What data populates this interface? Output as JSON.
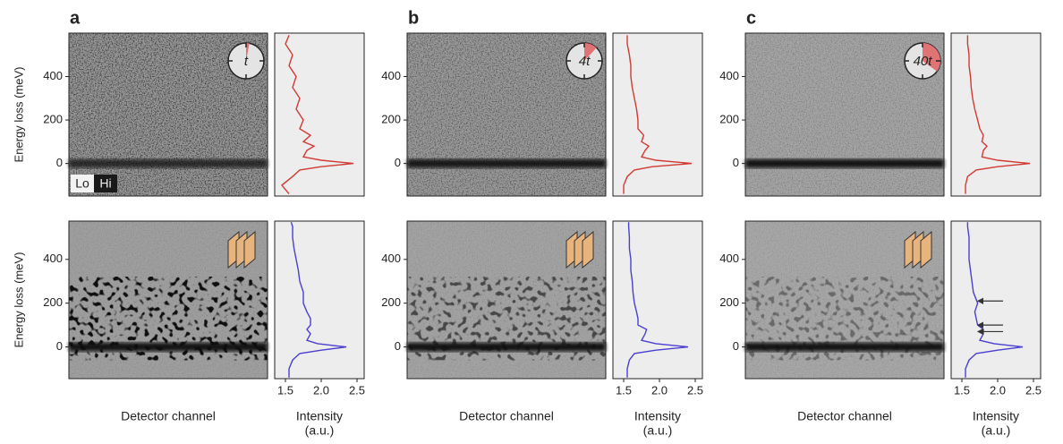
{
  "panel_labels": [
    "a",
    "b",
    "c"
  ],
  "clock_labels": [
    "t",
    "4t",
    "40t"
  ],
  "colorbar_labels": [
    "Lo",
    "Hi"
  ],
  "image_xlabel": "Detector channel",
  "chart_data": [
    {
      "type": "line",
      "color": "#d13a32",
      "ylabel": "Energy loss (meV)",
      "ylim": [
        -150,
        600
      ],
      "yticks": [
        0,
        200,
        400
      ],
      "xlim": [
        1.35,
        2.6
      ],
      "energy": [
        -140,
        -100,
        -60,
        -30,
        -15,
        0,
        15,
        30,
        60,
        80,
        100,
        130,
        160,
        200,
        250,
        300,
        350,
        400,
        450,
        500,
        550,
        590
      ],
      "values": [
        1.55,
        1.45,
        1.6,
        1.7,
        2.0,
        2.45,
        2.0,
        1.75,
        1.8,
        1.9,
        1.75,
        1.85,
        1.7,
        1.75,
        1.65,
        1.7,
        1.6,
        1.65,
        1.55,
        1.6,
        1.5,
        1.55
      ]
    },
    {
      "type": "line",
      "color": "#4a3fd0",
      "ylabel": "Energy loss (meV)",
      "xlabel": [
        "Intensity",
        "(a.u.)"
      ],
      "ylim": [
        -145,
        575
      ],
      "yticks": [
        0,
        200,
        400
      ],
      "xlim": [
        1.35,
        2.6
      ],
      "xticks": [
        1.5,
        {
          "value": 2.0,
          "label": "2.0"
        },
        2.5
      ],
      "energy": [
        -140,
        -100,
        -60,
        -30,
        -15,
        0,
        15,
        30,
        60,
        80,
        100,
        130,
        160,
        200,
        250,
        300,
        350,
        400,
        450,
        500,
        550,
        570
      ],
      "values": [
        1.55,
        1.55,
        1.6,
        1.7,
        2.0,
        2.35,
        1.95,
        1.8,
        1.85,
        1.8,
        1.85,
        1.85,
        1.8,
        1.75,
        1.75,
        1.7,
        1.68,
        1.65,
        1.62,
        1.6,
        1.6,
        1.58
      ]
    },
    {
      "type": "line",
      "color": "#d13a32",
      "ylim": [
        -150,
        600
      ],
      "yticks": [
        0,
        200,
        400
      ],
      "xlim": [
        1.35,
        2.6
      ],
      "energy": [
        -140,
        -100,
        -60,
        -30,
        -15,
        0,
        15,
        30,
        60,
        80,
        100,
        130,
        160,
        200,
        250,
        300,
        350,
        400,
        450,
        500,
        550,
        590
      ],
      "values": [
        1.5,
        1.5,
        1.55,
        1.65,
        1.9,
        2.45,
        1.95,
        1.75,
        1.8,
        1.85,
        1.75,
        1.78,
        1.7,
        1.7,
        1.68,
        1.65,
        1.62,
        1.6,
        1.6,
        1.58,
        1.55,
        1.55
      ]
    },
    {
      "type": "line",
      "color": "#4a3fd0",
      "xlabel": [
        "Intensity",
        "(a.u.)"
      ],
      "ylim": [
        -145,
        575
      ],
      "yticks": [
        0,
        200,
        400
      ],
      "xlim": [
        1.35,
        2.6
      ],
      "xticks": [
        1.5,
        {
          "value": 2.0,
          "label": "2.0"
        },
        2.5
      ],
      "energy": [
        -140,
        -100,
        -60,
        -30,
        -15,
        0,
        15,
        30,
        60,
        80,
        100,
        130,
        160,
        200,
        250,
        300,
        350,
        400,
        450,
        500,
        550,
        570
      ],
      "values": [
        1.55,
        1.55,
        1.58,
        1.65,
        1.95,
        2.4,
        1.95,
        1.75,
        1.8,
        1.82,
        1.7,
        1.7,
        1.68,
        1.65,
        1.63,
        1.62,
        1.6,
        1.6,
        1.58,
        1.58,
        1.57,
        1.57
      ]
    },
    {
      "type": "line",
      "color": "#d13a32",
      "ylim": [
        -150,
        600
      ],
      "yticks": [
        0,
        200,
        400
      ],
      "xlim": [
        1.35,
        2.6
      ],
      "energy": [
        -140,
        -100,
        -60,
        -30,
        -15,
        0,
        15,
        30,
        60,
        80,
        100,
        130,
        160,
        200,
        250,
        300,
        350,
        400,
        450,
        500,
        550,
        590
      ],
      "values": [
        1.55,
        1.55,
        1.58,
        1.7,
        2.0,
        2.45,
        2.0,
        1.78,
        1.8,
        1.85,
        1.78,
        1.8,
        1.75,
        1.72,
        1.68,
        1.65,
        1.63,
        1.62,
        1.6,
        1.6,
        1.58,
        1.58
      ]
    },
    {
      "type": "line",
      "color": "#4a3fd0",
      "xlabel": [
        "Intensity",
        "(a.u.)"
      ],
      "ylim": [
        -145,
        575
      ],
      "yticks": [
        0,
        200,
        400
      ],
      "xlim": [
        1.35,
        2.6
      ],
      "xticks": [
        1.5,
        {
          "value": 2.0,
          "label": "2.0"
        },
        2.5
      ],
      "energy": [
        -140,
        -100,
        -60,
        -30,
        -15,
        0,
        15,
        30,
        60,
        80,
        100,
        130,
        160,
        200,
        250,
        300,
        350,
        400,
        450,
        500,
        550,
        570
      ],
      "values": [
        1.55,
        1.55,
        1.6,
        1.7,
        2.0,
        2.35,
        1.95,
        1.75,
        1.8,
        1.8,
        1.72,
        1.7,
        1.68,
        1.72,
        1.66,
        1.64,
        1.62,
        1.6,
        1.6,
        1.6,
        1.58,
        1.58
      ]
    }
  ]
}
